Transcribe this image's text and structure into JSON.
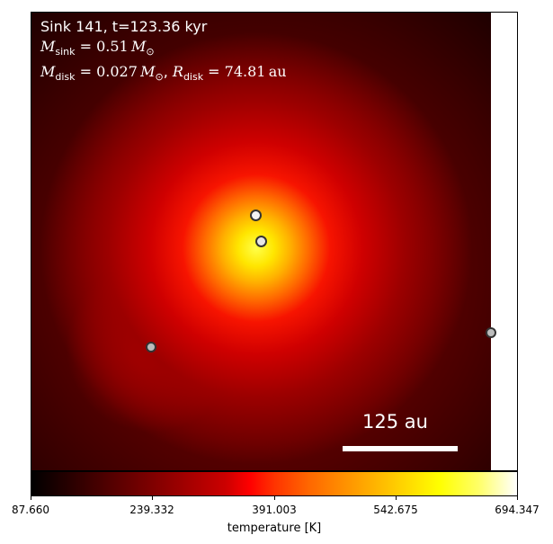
{
  "chart_data": {
    "type": "heatmap",
    "annotations": {
      "line1": "Sink 141, t=123.36 kyr",
      "sink_mass_value": "0.51",
      "disk_mass_value": "0.027",
      "disk_radius_value": "74.81",
      "unit_au": "au"
    },
    "scale_bar": {
      "label": "125 au",
      "length_au": 125
    },
    "colorbar": {
      "label": "temperature [K]",
      "colormap": "hot",
      "vmin": 87.66,
      "vmax": 694.347,
      "ticks": [
        "87.660",
        "239.332",
        "391.003",
        "542.675",
        "694.347"
      ]
    },
    "sinks_shown": 4,
    "colors": {
      "annotation_text": "#ffffff",
      "sink_edge": "#333333"
    }
  }
}
